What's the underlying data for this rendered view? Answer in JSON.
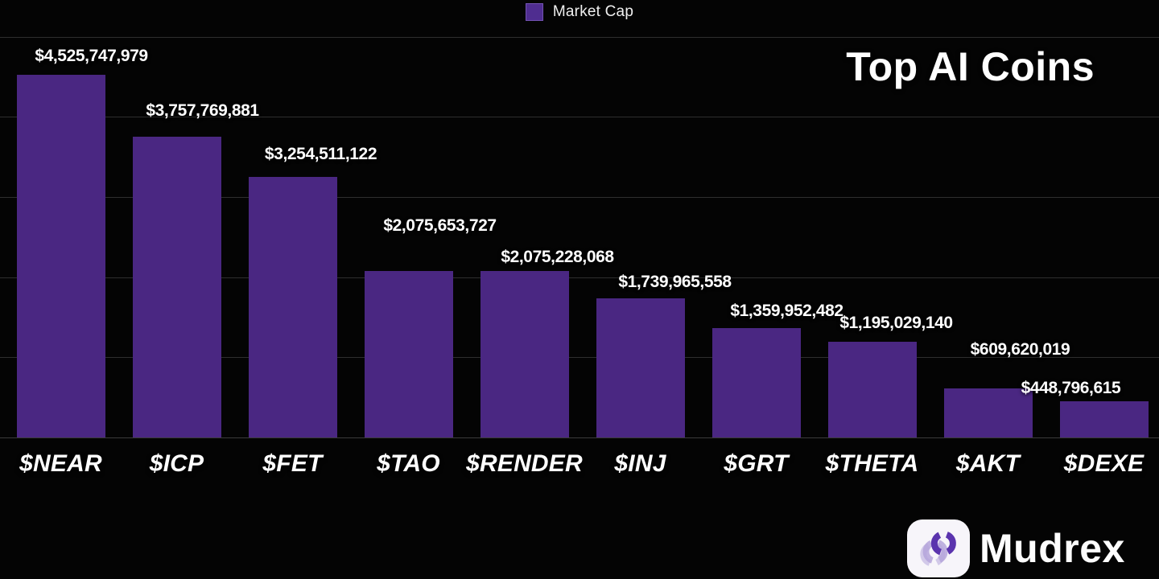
{
  "title": "Top AI Coins",
  "legend": {
    "label": "Market Cap",
    "swatch_color": "#4f2d90"
  },
  "footer": {
    "brand": "Mudrex"
  },
  "colors": {
    "background": "#040404",
    "bar": "#4a2782",
    "legend_swatch": "#4f2d90",
    "text": "#ffffff",
    "gridline": "rgba(255,255,255,0.17)",
    "logo_dark_purple": "#5b34ae",
    "logo_light_purple": "#b5a4da"
  },
  "chart_data": {
    "type": "bar",
    "title": "Top AI Coins",
    "series_name": "Market Cap",
    "categories": [
      "$NEAR",
      "$ICP",
      "$FET",
      "$TAO",
      "$RENDER",
      "$INJ",
      "$GRT",
      "$THETA",
      "$AKT",
      "$DEXE"
    ],
    "values": [
      4525747979,
      3757769881,
      3254511122,
      2075653727,
      2075228068,
      1739965558,
      1359952482,
      1195029140,
      609620019,
      448796615
    ],
    "value_labels": [
      "$4,525,747,979",
      "$3,757,769,881",
      "$3,254,511,122",
      "$2,075,653,727",
      "$2,075,228,068",
      "$1,739,965,558",
      "$1,359,952,482",
      "$1,195,029,140",
      "$609,620,019",
      "$448,796,615"
    ],
    "xlabel": "",
    "ylabel": "",
    "ylim": [
      0,
      5000000000
    ],
    "grid": "horizontal, one line per $1B (1B-5B)",
    "legend_position": "top-center",
    "bar_color": "#4a2782"
  }
}
